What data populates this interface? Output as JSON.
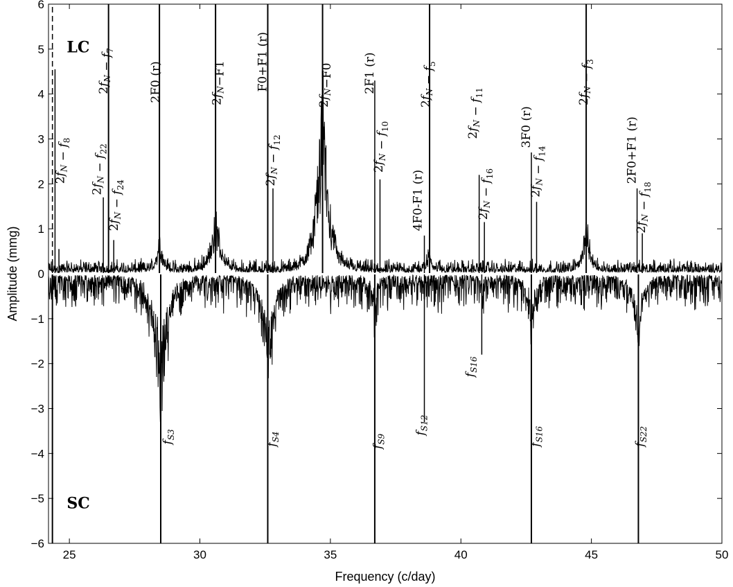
{
  "chart_data": {
    "type": "line",
    "xlabel": "Frequency (c/day)",
    "ylabel": "Amplitude (mmg)",
    "xlim": [
      24.2,
      50
    ],
    "ylim": [
      -6,
      6
    ],
    "xticks": [
      25,
      30,
      35,
      40,
      45,
      50
    ],
    "yticks": [
      -6,
      -5,
      -4,
      -3,
      -2,
      -1,
      0,
      1,
      2,
      3,
      4,
      5,
      6
    ],
    "grid": false,
    "legend": "none",
    "color": "#000000",
    "panel_labels": [
      {
        "text": "LC",
        "x": 24.9,
        "y": 5.05
      },
      {
        "text": "SC",
        "x": 24.9,
        "y": -5.1
      }
    ],
    "dashed_line": {
      "x": 24.35,
      "y_from": 0,
      "y_to": 6
    },
    "series": [
      {
        "panel": "LC",
        "noise_level": 0.15,
        "peaks": [
          {
            "x": 24.45,
            "amp": 4.55
          },
          {
            "x": 24.6,
            "amp": 0.55
          },
          {
            "x": 26.3,
            "amp": 1.7
          },
          {
            "x": 26.5,
            "amp": 6.0
          },
          {
            "x": 26.7,
            "amp": 0.75
          },
          {
            "x": 28.45,
            "amp": 6.0,
            "envelope": 0.9,
            "width": 0.35
          },
          {
            "x": 30.6,
            "amp": 6.0,
            "envelope": 1.6,
            "width": 0.55
          },
          {
            "x": 32.6,
            "amp": 6.0
          },
          {
            "x": 32.8,
            "amp": 1.9
          },
          {
            "x": 34.7,
            "amp": 6.0,
            "envelope": 4.8,
            "width": 0.75
          },
          {
            "x": 36.7,
            "amp": 4.3
          },
          {
            "x": 36.9,
            "amp": 2.1
          },
          {
            "x": 38.6,
            "amp": 0.85
          },
          {
            "x": 38.8,
            "amp": 6.0,
            "envelope": 0.5,
            "width": 0.3
          },
          {
            "x": 40.7,
            "amp": 2.2
          },
          {
            "x": 40.9,
            "amp": 1.15
          },
          {
            "x": 42.7,
            "amp": 2.7
          },
          {
            "x": 42.9,
            "amp": 1.6
          },
          {
            "x": 44.8,
            "amp": 6.0,
            "envelope": 1.3,
            "width": 0.45
          },
          {
            "x": 46.75,
            "amp": 1.9
          },
          {
            "x": 46.95,
            "amp": 0.9
          }
        ]
      },
      {
        "panel": "SC",
        "noise_level": 0.4,
        "peaks": [
          {
            "x": 24.35,
            "amp": 6.0
          },
          {
            "x": 28.5,
            "amp": 6.0,
            "envelope": 3.6,
            "width": 0.8
          },
          {
            "x": 32.6,
            "amp": 6.0,
            "envelope": 2.4,
            "width": 0.8
          },
          {
            "x": 36.7,
            "amp": 6.0,
            "envelope": 0.9,
            "width": 0.35
          },
          {
            "x": 38.6,
            "amp": 3.3
          },
          {
            "x": 40.8,
            "amp": 1.8,
            "envelope": 0.4,
            "width": 0.2
          },
          {
            "x": 42.7,
            "amp": 6.0,
            "envelope": 1.3,
            "width": 0.5
          },
          {
            "x": 46.8,
            "amp": 6.0,
            "envelope": 1.5,
            "width": 0.6
          }
        ]
      }
    ],
    "annotations": [
      {
        "x": 24.8,
        "y": 2.0,
        "text": "2f_N − f_8"
      },
      {
        "x": 26.2,
        "y": 1.75,
        "text": "2f_N − f_22"
      },
      {
        "x": 26.45,
        "y": 4.0,
        "text": "2f_N − f_7"
      },
      {
        "x": 26.85,
        "y": 0.95,
        "text": "2f_N − f_24"
      },
      {
        "x": 28.45,
        "y": 3.8,
        "text": "2F0 (r)"
      },
      {
        "x": 30.8,
        "y": 3.75,
        "text": "2f_N−F1"
      },
      {
        "x": 32.55,
        "y": 4.05,
        "text": "F0+F1 (r)"
      },
      {
        "x": 32.85,
        "y": 1.95,
        "text": "2f_N − f_12"
      },
      {
        "x": 34.9,
        "y": 3.7,
        "text": "2f_N−F0"
      },
      {
        "x": 36.65,
        "y": 4.0,
        "text": "2F1 (r)"
      },
      {
        "x": 37.0,
        "y": 2.25,
        "text": "2f_N − f_10"
      },
      {
        "x": 38.5,
        "y": 0.95,
        "text": "4F0-F1 (r)"
      },
      {
        "x": 38.8,
        "y": 3.7,
        "text": "2f_N − f_5"
      },
      {
        "x": 40.6,
        "y": 3.0,
        "text": "2f_N − f_11"
      },
      {
        "x": 41.0,
        "y": 1.2,
        "text": "2f_N − f_16"
      },
      {
        "x": 42.65,
        "y": 2.8,
        "text": "3F0 (r)"
      },
      {
        "x": 43.0,
        "y": 1.7,
        "text": "2f_N − f_14"
      },
      {
        "x": 44.85,
        "y": 3.75,
        "text": "2f_N − f_3"
      },
      {
        "x": 46.7,
        "y": 2.0,
        "text": "2F0+F1 (r)"
      },
      {
        "x": 47.05,
        "y": 0.9,
        "text": "2f_N − f_18"
      },
      {
        "x": 28.9,
        "y": -3.8,
        "text": "f_S3"
      },
      {
        "x": 32.9,
        "y": -3.85,
        "text": "f_S4"
      },
      {
        "x": 36.95,
        "y": -3.9,
        "text": "f_S9"
      },
      {
        "x": 38.6,
        "y": -3.6,
        "text": "f_S12"
      },
      {
        "x": 40.5,
        "y": -2.3,
        "text": "f_S16"
      },
      {
        "x": 43.0,
        "y": -3.85,
        "text": "f_S16"
      },
      {
        "x": 47.0,
        "y": -3.85,
        "text": "f_S22"
      }
    ]
  }
}
